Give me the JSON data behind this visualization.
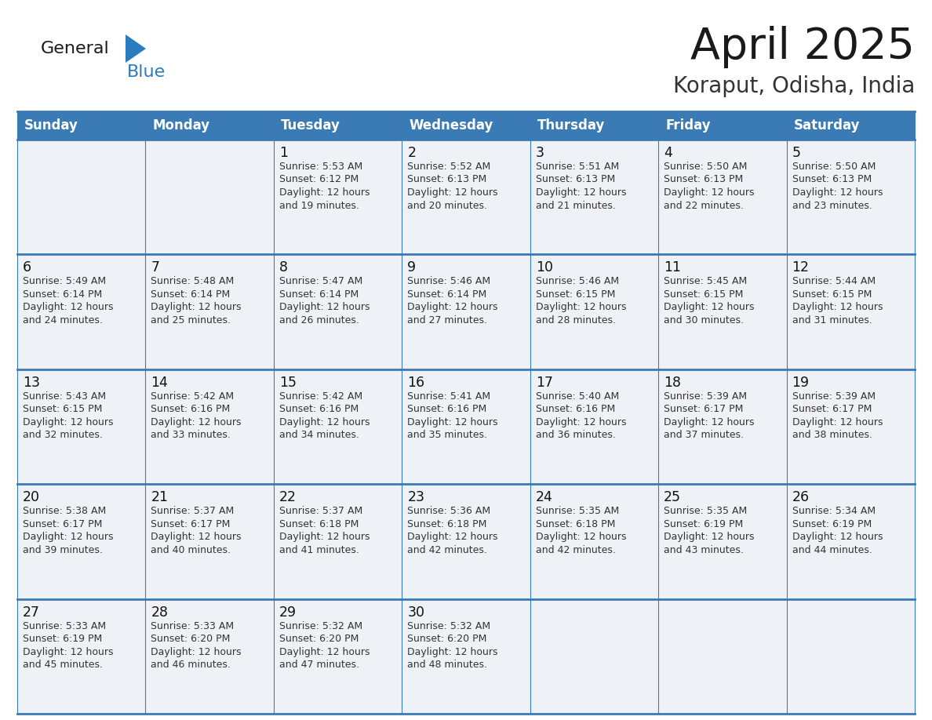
{
  "title": "April 2025",
  "subtitle": "Koraput, Odisha, India",
  "days_of_week": [
    "Sunday",
    "Monday",
    "Tuesday",
    "Wednesday",
    "Thursday",
    "Friday",
    "Saturday"
  ],
  "header_bg": "#3a7ab5",
  "header_text": "#ffffff",
  "row_bg_light": "#eef2f7",
  "row_bg_white": "#ffffff",
  "cell_border_color": "#3a7ab5",
  "day_number_color": "#111111",
  "content_color": "#333333",
  "title_color": "#1a1a1a",
  "subtitle_color": "#333333",
  "logo_general_color": "#1a1a1a",
  "logo_blue_color": "#2b7bbf",
  "weeks": [
    {
      "days": [
        {
          "date": "",
          "sunrise": "",
          "sunset": "",
          "daylight_min": 0
        },
        {
          "date": "",
          "sunrise": "",
          "sunset": "",
          "daylight_min": 0
        },
        {
          "date": "1",
          "sunrise": "5:53 AM",
          "sunset": "6:12 PM",
          "daylight_min": 739
        },
        {
          "date": "2",
          "sunrise": "5:52 AM",
          "sunset": "6:13 PM",
          "daylight_min": 740
        },
        {
          "date": "3",
          "sunrise": "5:51 AM",
          "sunset": "6:13 PM",
          "daylight_min": 741
        },
        {
          "date": "4",
          "sunrise": "5:50 AM",
          "sunset": "6:13 PM",
          "daylight_min": 742
        },
        {
          "date": "5",
          "sunrise": "5:50 AM",
          "sunset": "6:13 PM",
          "daylight_min": 743
        }
      ]
    },
    {
      "days": [
        {
          "date": "6",
          "sunrise": "5:49 AM",
          "sunset": "6:14 PM",
          "daylight_min": 744
        },
        {
          "date": "7",
          "sunrise": "5:48 AM",
          "sunset": "6:14 PM",
          "daylight_min": 745
        },
        {
          "date": "8",
          "sunrise": "5:47 AM",
          "sunset": "6:14 PM",
          "daylight_min": 746
        },
        {
          "date": "9",
          "sunrise": "5:46 AM",
          "sunset": "6:14 PM",
          "daylight_min": 747
        },
        {
          "date": "10",
          "sunrise": "5:46 AM",
          "sunset": "6:15 PM",
          "daylight_min": 748
        },
        {
          "date": "11",
          "sunrise": "5:45 AM",
          "sunset": "6:15 PM",
          "daylight_min": 750
        },
        {
          "date": "12",
          "sunrise": "5:44 AM",
          "sunset": "6:15 PM",
          "daylight_min": 751
        }
      ]
    },
    {
      "days": [
        {
          "date": "13",
          "sunrise": "5:43 AM",
          "sunset": "6:15 PM",
          "daylight_min": 752
        },
        {
          "date": "14",
          "sunrise": "5:42 AM",
          "sunset": "6:16 PM",
          "daylight_min": 753
        },
        {
          "date": "15",
          "sunrise": "5:42 AM",
          "sunset": "6:16 PM",
          "daylight_min": 754
        },
        {
          "date": "16",
          "sunrise": "5:41 AM",
          "sunset": "6:16 PM",
          "daylight_min": 755
        },
        {
          "date": "17",
          "sunrise": "5:40 AM",
          "sunset": "6:16 PM",
          "daylight_min": 756
        },
        {
          "date": "18",
          "sunrise": "5:39 AM",
          "sunset": "6:17 PM",
          "daylight_min": 757
        },
        {
          "date": "19",
          "sunrise": "5:39 AM",
          "sunset": "6:17 PM",
          "daylight_min": 758
        }
      ]
    },
    {
      "days": [
        {
          "date": "20",
          "sunrise": "5:38 AM",
          "sunset": "6:17 PM",
          "daylight_min": 759
        },
        {
          "date": "21",
          "sunrise": "5:37 AM",
          "sunset": "6:17 PM",
          "daylight_min": 760
        },
        {
          "date": "22",
          "sunrise": "5:37 AM",
          "sunset": "6:18 PM",
          "daylight_min": 761
        },
        {
          "date": "23",
          "sunrise": "5:36 AM",
          "sunset": "6:18 PM",
          "daylight_min": 762
        },
        {
          "date": "24",
          "sunrise": "5:35 AM",
          "sunset": "6:18 PM",
          "daylight_min": 762
        },
        {
          "date": "25",
          "sunrise": "5:35 AM",
          "sunset": "6:19 PM",
          "daylight_min": 763
        },
        {
          "date": "26",
          "sunrise": "5:34 AM",
          "sunset": "6:19 PM",
          "daylight_min": 764
        }
      ]
    },
    {
      "days": [
        {
          "date": "27",
          "sunrise": "5:33 AM",
          "sunset": "6:19 PM",
          "daylight_min": 765
        },
        {
          "date": "28",
          "sunrise": "5:33 AM",
          "sunset": "6:20 PM",
          "daylight_min": 766
        },
        {
          "date": "29",
          "sunrise": "5:32 AM",
          "sunset": "6:20 PM",
          "daylight_min": 767
        },
        {
          "date": "30",
          "sunrise": "5:32 AM",
          "sunset": "6:20 PM",
          "daylight_min": 768
        },
        {
          "date": "",
          "sunrise": "",
          "sunset": "",
          "daylight_min": 0
        },
        {
          "date": "",
          "sunrise": "",
          "sunset": "",
          "daylight_min": 0
        },
        {
          "date": "",
          "sunrise": "",
          "sunset": "",
          "daylight_min": 0
        }
      ]
    }
  ]
}
